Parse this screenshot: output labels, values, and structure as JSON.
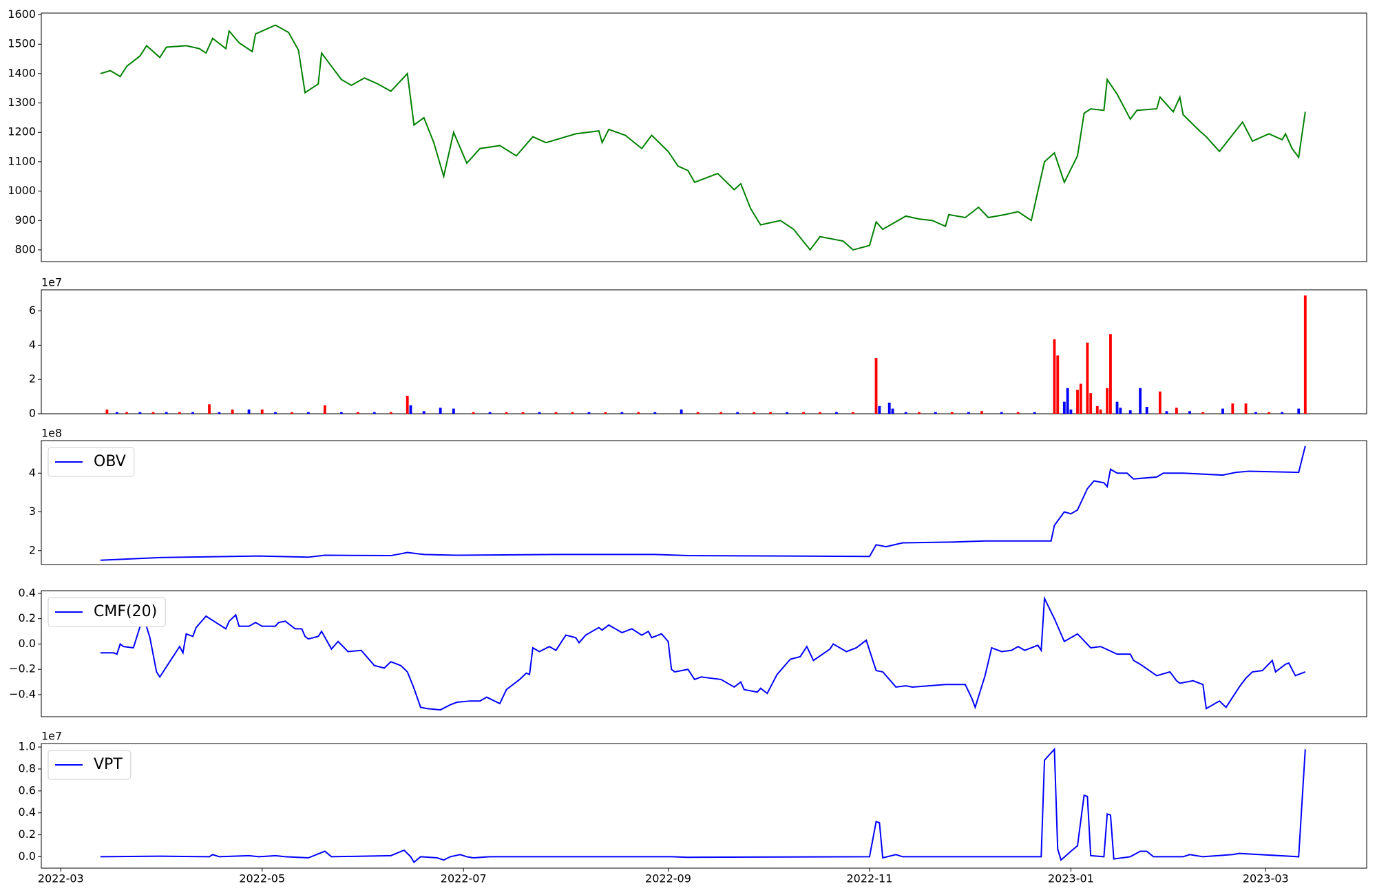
{
  "chart_data": [
    {
      "type": "line",
      "color": "#008000",
      "x": [
        12,
        15,
        18,
        20,
        24,
        26,
        30,
        32,
        38,
        42,
        44,
        46,
        50,
        51,
        54,
        58,
        59,
        65,
        69,
        72,
        74,
        78,
        79,
        81,
        85,
        88,
        92,
        96,
        100,
        105,
        107,
        110,
        113,
        116,
        119,
        123,
        127,
        133,
        138,
        143,
        147,
        156,
        163,
        164,
        166,
        171,
        176,
        179,
        184,
        187,
        190,
        192,
        199,
        204,
        206,
        209,
        212,
        218,
        222,
        227,
        230,
        237,
        240,
        245,
        247,
        249,
        256,
        260,
        264,
        268,
        269,
        274,
        278,
        281,
        286,
        290,
        294,
        298,
        301,
        304,
        308,
        310,
        312,
        316,
        317,
        320,
        324,
        326,
        332,
        333,
        337,
        339,
        340,
        345,
        347,
        351,
        358,
        361,
        366,
        370,
        371,
        373,
        375,
        377
      ],
      "values": [
        1400,
        1410,
        1390,
        1425,
        1460,
        1495,
        1455,
        1490,
        1495,
        1485,
        1470,
        1520,
        1485,
        1545,
        1505,
        1475,
        1535,
        1565,
        1540,
        1480,
        1335,
        1365,
        1470,
        1440,
        1380,
        1360,
        1385,
        1365,
        1340,
        1400,
        1225,
        1250,
        1165,
        1050,
        1200,
        1095,
        1145,
        1155,
        1120,
        1185,
        1165,
        1195,
        1205,
        1165,
        1210,
        1190,
        1145,
        1190,
        1135,
        1085,
        1070,
        1030,
        1060,
        1005,
        1025,
        940,
        885,
        900,
        870,
        800,
        845,
        830,
        800,
        815,
        895,
        870,
        915,
        905,
        900,
        880,
        920,
        910,
        945,
        910,
        920,
        930,
        900,
        1100,
        1130,
        1030,
        1120,
        1265,
        1280,
        1275,
        1380,
        1330,
        1245,
        1275,
        1280,
        1320,
        1270,
        1320,
        1260,
        1205,
        1185,
        1135,
        1235,
        1170,
        1195,
        1175,
        1195,
        1145,
        1115,
        1270
      ],
      "xlim": [
        -5.9,
        395.6
      ],
      "ylim": [
        760,
        1606
      ],
      "yticks": [
        800,
        900,
        1000,
        1100,
        1200,
        1300,
        1400,
        1500,
        1600
      ]
    },
    {
      "type": "bar",
      "offset_text": "1e7",
      "x": [
        14,
        17,
        20,
        24,
        28,
        32,
        36,
        40,
        45,
        48,
        52,
        57,
        61,
        65,
        70,
        75,
        80,
        85,
        90,
        95,
        100,
        105,
        106,
        110,
        115,
        119,
        125,
        130,
        135,
        140,
        145,
        150,
        155,
        160,
        165,
        170,
        175,
        180,
        188,
        193,
        200,
        205,
        210,
        215,
        220,
        225,
        230,
        235,
        240,
        247,
        248,
        251,
        252,
        256,
        260,
        265,
        270,
        275,
        279,
        285,
        290,
        295,
        301,
        302,
        304,
        305,
        306,
        308,
        309,
        311,
        312,
        314,
        315,
        317,
        318,
        320,
        321,
        324,
        327,
        329,
        333,
        335,
        338,
        342,
        346,
        352,
        355,
        359,
        362,
        366,
        370,
        375,
        377
      ],
      "values": [
        0.25,
        0.1,
        0.1,
        0.1,
        0.1,
        0.1,
        0.1,
        0.1,
        0.55,
        0.1,
        0.25,
        0.25,
        0.25,
        0.1,
        0.1,
        0.1,
        0.5,
        0.1,
        0.1,
        0.1,
        0.1,
        1.05,
        0.5,
        0.15,
        0.35,
        0.3,
        0.1,
        0.1,
        0.1,
        0.1,
        0.1,
        0.1,
        0.1,
        0.1,
        0.1,
        0.1,
        0.1,
        0.1,
        0.25,
        0.1,
        0.1,
        0.1,
        0.1,
        0.1,
        0.1,
        0.1,
        0.1,
        0.1,
        0.1,
        3.25,
        0.45,
        0.65,
        0.3,
        0.1,
        0.1,
        0.1,
        0.1,
        0.1,
        0.15,
        0.1,
        0.1,
        0.1,
        4.35,
        3.4,
        0.7,
        1.5,
        0.25,
        1.4,
        1.75,
        4.15,
        1.2,
        0.45,
        0.25,
        1.5,
        4.65,
        0.7,
        0.35,
        0.2,
        1.5,
        0.4,
        1.3,
        0.15,
        0.35,
        0.15,
        0.1,
        0.3,
        0.6,
        0.6,
        0.1,
        0.1,
        0.1,
        0.3,
        6.9
      ],
      "colors": [
        "#ff0000",
        "#0000ff",
        "#ff0000",
        "#0000ff",
        "#ff0000",
        "#0000ff",
        "#ff0000",
        "#0000ff",
        "#ff0000",
        "#0000ff",
        "#ff0000",
        "#0000ff",
        "#ff0000",
        "#0000ff",
        "#ff0000",
        "#0000ff",
        "#ff0000",
        "#0000ff",
        "#ff0000",
        "#0000ff",
        "#ff0000",
        "#ff0000",
        "#0000ff",
        "#0000ff",
        "#0000ff",
        "#0000ff",
        "#ff0000",
        "#0000ff",
        "#ff0000",
        "#ff0000",
        "#0000ff",
        "#ff0000",
        "#ff0000",
        "#0000ff",
        "#ff0000",
        "#0000ff",
        "#ff0000",
        "#0000ff",
        "#0000ff",
        "#ff0000",
        "#ff0000",
        "#0000ff",
        "#ff0000",
        "#ff0000",
        "#0000ff",
        "#ff0000",
        "#ff0000",
        "#0000ff",
        "#ff0000",
        "#ff0000",
        "#0000ff",
        "#0000ff",
        "#0000ff",
        "#0000ff",
        "#ff0000",
        "#0000ff",
        "#ff0000",
        "#0000ff",
        "#ff0000",
        "#0000ff",
        "#ff0000",
        "#0000ff",
        "#ff0000",
        "#ff0000",
        "#0000ff",
        "#0000ff",
        "#0000ff",
        "#ff0000",
        "#ff0000",
        "#ff0000",
        "#ff0000",
        "#ff0000",
        "#ff0000",
        "#ff0000",
        "#ff0000",
        "#0000ff",
        "#0000ff",
        "#0000ff",
        "#0000ff",
        "#0000ff",
        "#ff0000",
        "#0000ff",
        "#ff0000",
        "#0000ff",
        "#ff0000",
        "#0000ff",
        "#ff0000",
        "#ff0000",
        "#0000ff",
        "#ff0000",
        "#0000ff",
        "#0000ff",
        "#ff0000"
      ],
      "xlim": [
        -5.9,
        395.6
      ],
      "ylim": [
        0,
        7.23
      ],
      "yticks": [
        0,
        2,
        4,
        6
      ]
    },
    {
      "type": "line",
      "offset_text": "1e8",
      "legend": "upper left",
      "x": [
        12,
        30,
        60,
        75,
        80,
        100,
        105,
        110,
        120,
        150,
        180,
        190,
        245,
        247,
        250,
        255,
        270,
        280,
        300,
        301,
        304,
        306,
        308,
        311,
        313,
        316,
        317,
        318,
        320,
        323,
        325,
        332,
        334,
        340,
        352,
        356,
        360,
        375,
        377
      ],
      "series": [
        {
          "name": "OBV",
          "color": "#0000ff",
          "values": [
            1.75,
            1.82,
            1.86,
            1.83,
            1.88,
            1.87,
            1.95,
            1.9,
            1.88,
            1.9,
            1.9,
            1.87,
            1.85,
            2.15,
            2.1,
            2.2,
            2.22,
            2.25,
            2.25,
            2.65,
            3.0,
            2.95,
            3.05,
            3.6,
            3.8,
            3.75,
            3.65,
            4.1,
            4.0,
            4.0,
            3.85,
            3.9,
            4.0,
            4.0,
            3.95,
            4.02,
            4.05,
            4.02,
            4.7
          ]
        }
      ],
      "xlim": [
        -5.9,
        395.6
      ],
      "ylim": [
        1.64,
        4.84
      ],
      "yticks": [
        2,
        3,
        4
      ]
    },
    {
      "type": "line",
      "legend": "upper left",
      "x": [
        12,
        16,
        17,
        18,
        19,
        22,
        25,
        27,
        29,
        30,
        34,
        36,
        37,
        38,
        40,
        41,
        44,
        47,
        50,
        51,
        53,
        54,
        57,
        59,
        61,
        65,
        66,
        68,
        71,
        73,
        74,
        75,
        78,
        79,
        82,
        84,
        87,
        91,
        95,
        98,
        100,
        103,
        105,
        107,
        109,
        111,
        115,
        118,
        120,
        124,
        127,
        129,
        133,
        135,
        139,
        141,
        142,
        143,
        145,
        148,
        150,
        153,
        156,
        157,
        159,
        163,
        164,
        166,
        170,
        173,
        176,
        178,
        179,
        182,
        184,
        185,
        186,
        190,
        192,
        194,
        200,
        204,
        206,
        207,
        211,
        212,
        214,
        217,
        221,
        224,
        226,
        228,
        233,
        234,
        238,
        241,
        244,
        247,
        249,
        253,
        256,
        258,
        268,
        274,
        276,
        277,
        280,
        282,
        285,
        288,
        290,
        292,
        296,
        297,
        298,
        301,
        304,
        308,
        312,
        315,
        320,
        324,
        325,
        327,
        332,
        336,
        338,
        339,
        343,
        346,
        347,
        351,
        353,
        357,
        359,
        361,
        364,
        367,
        368,
        371,
        372,
        374,
        377
      ],
      "series": [
        {
          "name": "CMF(20)",
          "color": "#0000ff",
          "values": [
            -0.07,
            -0.07,
            -0.08,
            0,
            -0.02,
            -0.03,
            0.22,
            0.05,
            -0.22,
            -0.26,
            -0.1,
            -0.02,
            -0.07,
            0.08,
            0.06,
            0.13,
            0.22,
            0.17,
            0.12,
            0.18,
            0.23,
            0.14,
            0.14,
            0.17,
            0.14,
            0.14,
            0.17,
            0.18,
            0.12,
            0.12,
            0.06,
            0.04,
            0.06,
            0.1,
            -0.04,
            0.02,
            -0.06,
            -0.05,
            -0.17,
            -0.19,
            -0.14,
            -0.17,
            -0.22,
            -0.35,
            -0.5,
            -0.51,
            -0.52,
            -0.48,
            -0.46,
            -0.45,
            -0.45,
            -0.42,
            -0.47,
            -0.36,
            -0.28,
            -0.23,
            -0.24,
            -0.03,
            -0.06,
            -0.02,
            -0.05,
            0.07,
            0.05,
            0.01,
            0.07,
            0.13,
            0.11,
            0.15,
            0.09,
            0.12,
            0.07,
            0.1,
            0.05,
            0.08,
            0.02,
            -0.2,
            -0.22,
            -0.2,
            -0.28,
            -0.26,
            -0.28,
            -0.34,
            -0.3,
            -0.36,
            -0.38,
            -0.35,
            -0.39,
            -0.24,
            -0.12,
            -0.1,
            -0.02,
            -0.13,
            -0.04,
            0,
            -0.06,
            -0.03,
            0.03,
            -0.21,
            -0.22,
            -0.34,
            -0.33,
            -0.34,
            -0.32,
            -0.32,
            -0.43,
            -0.5,
            -0.25,
            -0.03,
            -0.06,
            -0.05,
            -0.02,
            -0.05,
            -0.01,
            -0.05,
            0.36,
            0.2,
            0.02,
            0.08,
            -0.03,
            -0.02,
            -0.08,
            -0.08,
            -0.13,
            -0.16,
            -0.25,
            -0.22,
            -0.29,
            -0.31,
            -0.29,
            -0.32,
            -0.51,
            -0.45,
            -0.5,
            -0.34,
            -0.27,
            -0.22,
            -0.21,
            -0.13,
            -0.22,
            -0.16,
            -0.15,
            -0.25,
            -0.22
          ]
        }
      ],
      "xlim": [
        -5.9,
        395.6
      ],
      "ylim": [
        -0.574,
        0.421
      ],
      "yticks": [
        {
          "value": -0.4,
          "label": "−0.4"
        },
        {
          "value": -0.2,
          "label": "−0.2"
        },
        {
          "value": 0,
          "label": "0.0"
        },
        0.2,
        0.4
      ]
    },
    {
      "type": "line",
      "offset_text": "1e7",
      "legend": "upper left",
      "x": [
        12,
        30,
        45,
        46,
        48,
        57,
        60,
        65,
        68,
        75,
        80,
        82,
        100,
        104,
        106,
        107,
        109,
        114,
        116,
        118,
        121,
        123,
        125,
        130,
        185,
        190,
        245,
        247,
        248,
        249,
        253,
        255,
        297,
        298,
        301,
        302,
        303,
        306,
        308,
        310,
        311,
        312,
        316,
        317,
        318,
        319,
        324,
        327,
        329,
        331,
        340,
        342,
        346,
        355,
        357,
        375,
        377
      ],
      "series": [
        {
          "name": "VPT",
          "color": "#0000ff",
          "values": [
            0,
            0.005,
            0,
            0.02,
            0,
            0.01,
            0,
            0.01,
            0,
            -0.01,
            0.05,
            0,
            0.01,
            0.06,
            0,
            -0.05,
            0,
            -0.01,
            -0.03,
            0,
            0.02,
            0,
            -0.01,
            0,
            0,
            -0.005,
            0,
            0.32,
            0.31,
            -0.01,
            0.02,
            0,
            0,
            0.88,
            0.98,
            0.07,
            -0.03,
            0.05,
            0.1,
            0.56,
            0.55,
            0.01,
            0,
            0.39,
            0.38,
            -0.02,
            0,
            0.05,
            0.05,
            0,
            0,
            0.02,
            0,
            0.02,
            0.03,
            0,
            0.98
          ]
        }
      ],
      "xlim": [
        -5.9,
        395.6
      ],
      "ylim": [
        -0.104,
        1.032
      ],
      "yticks": [
        {
          "value": 0,
          "label": "0.0"
        },
        0.2,
        0.4,
        0.6,
        0.8,
        {
          "value": 1,
          "label": "1.0"
        }
      ],
      "xticks": [
        {
          "value": 0,
          "label": "2022-03"
        },
        {
          "value": 61,
          "label": "2022-05"
        },
        {
          "value": 122,
          "label": "2022-07"
        },
        {
          "value": 184,
          "label": "2022-09"
        },
        {
          "value": 245,
          "label": "2022-11"
        },
        {
          "value": 306,
          "label": "2023-01"
        },
        {
          "value": 365,
          "label": "2023-03"
        }
      ]
    }
  ]
}
